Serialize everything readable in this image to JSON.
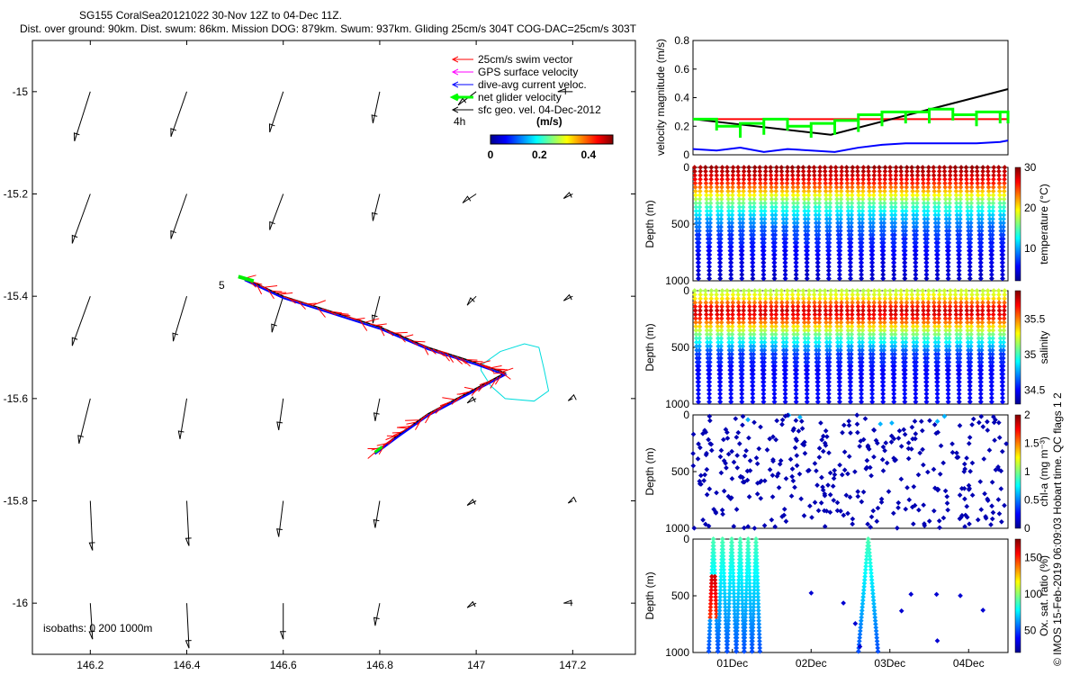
{
  "header": {
    "title_line1": "SG155 CoralSea20121022 30-Nov 12Z to 04-Dec 11Z.",
    "title_line2": "Dist. over ground: 90km. Dist. swum: 86km. Mission DOG: 879km. Swum: 937km. Gliding 25cm/s 304T COG-DAC=25cm/s 303T"
  },
  "credit": "© IMOS 15-Feb-2019 06:09:03 Hobart time. QC flags 1  2",
  "chart_data": [
    {
      "id": "map",
      "type": "scatter",
      "title": "",
      "xlabel": "",
      "ylabel": "",
      "xlim": [
        146.08,
        147.33
      ],
      "ylim": [
        -16.1,
        -14.9
      ],
      "xticks": [
        146.2,
        146.4,
        146.6,
        146.8,
        147,
        147.2
      ],
      "xtick_labels": [
        "146.2",
        "146.4",
        "146.6",
        "146.8",
        "147",
        "147.2"
      ],
      "yticks": [
        -15,
        -15.2,
        -15.4,
        -15.6,
        -15.8,
        -16
      ],
      "ytick_labels": [
        "-15",
        "-15.2",
        "-15.4",
        "-15.6",
        "-15.8",
        "-16"
      ],
      "legend": {
        "position": "top-right",
        "entries": [
          {
            "label": "25cm/s swim vector",
            "color": "#ff0000"
          },
          {
            "label": "GPS surface velocity",
            "color": "#ff00ff"
          },
          {
            "label": "dive-avg current veloc.",
            "color": "#0000ff"
          },
          {
            "label": "net glider velocity",
            "color": "#00ff00"
          },
          {
            "label": "sfc geo. vel. 04-Dec-2012",
            "color": "#000000"
          }
        ]
      },
      "colorbar": {
        "label": "(m/s)",
        "ticks": [
          "0",
          "0.2",
          "0.4"
        ],
        "range": [
          0,
          0.5
        ]
      },
      "annotations": [
        "4h",
        "5",
        "isobaths: 0   200  1000m"
      ],
      "track": [
        [
          146.52,
          -15.365
        ],
        [
          146.6,
          -15.4
        ],
        [
          146.7,
          -15.43
        ],
        [
          146.8,
          -15.46
        ],
        [
          146.9,
          -15.5
        ],
        [
          147.0,
          -15.53
        ],
        [
          147.06,
          -15.55
        ],
        [
          146.98,
          -15.59
        ],
        [
          146.9,
          -15.63
        ],
        [
          146.84,
          -15.67
        ],
        [
          146.79,
          -15.705
        ]
      ],
      "contour": [
        [
          147.01,
          -15.535
        ],
        [
          147.05,
          -15.508
        ],
        [
          147.1,
          -15.493
        ],
        [
          147.13,
          -15.5
        ],
        [
          147.14,
          -15.54
        ],
        [
          147.15,
          -15.585
        ],
        [
          147.12,
          -15.605
        ],
        [
          147.06,
          -15.6
        ],
        [
          147.03,
          -15.575
        ],
        [
          147.01,
          -15.545
        ]
      ],
      "geo_vectors": {
        "x": [
          146.2,
          146.4,
          146.6,
          146.8,
          147.0,
          147.2
        ],
        "y": [
          -15.0,
          -15.2,
          -15.4,
          -15.6,
          -15.8,
          -16.0
        ],
        "u": [
          [
            -0.035,
            -0.035,
            -0.03,
            -0.015,
            -0.04,
            -0.033
          ],
          [
            -0.04,
            -0.035,
            -0.03,
            -0.015,
            -0.03,
            -0.02
          ],
          [
            -0.04,
            -0.03,
            -0.025,
            -0.015,
            -0.02,
            -0.02
          ],
          [
            -0.025,
            -0.015,
            -0.01,
            -0.01,
            -0.02,
            -0.01
          ],
          [
            0.005,
            0.005,
            -0.01,
            -0.01,
            -0.02,
            -0.01
          ],
          [
            0.005,
            0.005,
            0.0,
            -0.01,
            -0.02,
            -0.02
          ]
        ],
        "v": [
          [
            -0.11,
            -0.1,
            -0.09,
            -0.07,
            -0.03,
            0.0
          ],
          [
            -0.11,
            -0.1,
            -0.08,
            -0.06,
            -0.02,
            -0.01
          ],
          [
            -0.11,
            -0.1,
            -0.08,
            -0.06,
            -0.02,
            -0.01
          ],
          [
            -0.1,
            -0.09,
            -0.07,
            -0.05,
            -0.01,
            -0.005
          ],
          [
            -0.11,
            -0.1,
            -0.08,
            -0.06,
            -0.01,
            -0.005
          ],
          [
            -0.08,
            -0.1,
            -0.08,
            -0.05,
            -0.01,
            0.0
          ]
        ]
      }
    },
    {
      "id": "velocity",
      "type": "line",
      "ylabel": "velocity magnitude (m/s)",
      "ylim": [
        0,
        0.8
      ],
      "yticks": [
        0,
        0.2,
        0.4,
        0.6,
        0.8
      ],
      "ytick_labels": [
        "0",
        "0.2",
        "0.4",
        "0.6",
        "0.8"
      ],
      "xlim": [
        0,
        4
      ],
      "series": [
        {
          "color": "#ff0000",
          "x": [
            0,
            4
          ],
          "values": [
            0.25,
            0.25
          ]
        },
        {
          "color": "#000000",
          "x": [
            0,
            1.75,
            4
          ],
          "values": [
            0.25,
            0.14,
            0.46
          ]
        },
        {
          "color": "#0000ff",
          "x": [
            0,
            0.3,
            0.6,
            0.9,
            1.2,
            1.5,
            1.8,
            2.1,
            2.4,
            2.7,
            3.0,
            3.3,
            3.6,
            3.9,
            4.0
          ],
          "values": [
            0.04,
            0.03,
            0.05,
            0.02,
            0.04,
            0.03,
            0.02,
            0.05,
            0.07,
            0.08,
            0.08,
            0.08,
            0.08,
            0.09,
            0.1
          ]
        },
        {
          "color": "#00ff00",
          "x": [
            0,
            0.3,
            0.6,
            0.9,
            1.2,
            1.5,
            1.8,
            2.1,
            2.4,
            2.7,
            3.0,
            3.3,
            3.6,
            3.9,
            4.0
          ],
          "values": [
            0.25,
            0.2,
            0.22,
            0.25,
            0.2,
            0.22,
            0.24,
            0.28,
            0.3,
            0.3,
            0.32,
            0.28,
            0.3,
            0.3,
            0.3
          ]
        }
      ]
    },
    {
      "id": "temperature",
      "type": "scatter",
      "ylabel": "Depth (m)",
      "cbar_label": "temperature (°C)",
      "cbar_ticks": [
        "10",
        "20",
        "30"
      ],
      "cbar_range": [
        2,
        30
      ],
      "yticks": [
        "0",
        "500",
        "1000"
      ],
      "ylim": [
        1000,
        0
      ],
      "dives": 29,
      "profile": [
        [
          0,
          29
        ],
        [
          50,
          28
        ],
        [
          100,
          27
        ],
        [
          150,
          25
        ],
        [
          200,
          22
        ],
        [
          250,
          19
        ],
        [
          300,
          16
        ],
        [
          400,
          12
        ],
        [
          500,
          9
        ],
        [
          600,
          7
        ],
        [
          800,
          5
        ],
        [
          1000,
          4
        ]
      ]
    },
    {
      "id": "salinity",
      "type": "scatter",
      "ylabel": "Depth (m)",
      "cbar_label": "salinity",
      "cbar_ticks": [
        "34.5",
        "35",
        "35.5"
      ],
      "cbar_range": [
        34.3,
        35.9
      ],
      "yticks": [
        "0",
        "500",
        "1000"
      ],
      "ylim": [
        1000,
        0
      ],
      "dives": 29,
      "profile": [
        [
          0,
          35.2
        ],
        [
          60,
          35.3
        ],
        [
          120,
          35.6
        ],
        [
          180,
          35.8
        ],
        [
          260,
          35.6
        ],
        [
          350,
          35.2
        ],
        [
          450,
          34.9
        ],
        [
          550,
          34.6
        ],
        [
          700,
          34.5
        ],
        [
          1000,
          34.5
        ]
      ]
    },
    {
      "id": "chla",
      "type": "scatter",
      "ylabel": "Depth (m)",
      "cbar_label": "chl-a (mg m⁻³)",
      "cbar_ticks": [
        "0",
        "0.5",
        "1",
        "1.5",
        "2"
      ],
      "cbar_range": [
        0,
        2
      ],
      "yticks": [
        "0",
        "500",
        "1000"
      ],
      "ylim": [
        1000,
        0
      ],
      "dives": 29
    },
    {
      "id": "oxygen",
      "type": "scatter",
      "ylabel": "Depth (m)",
      "cbar_label": "Ox. sat. ratio (%)",
      "cbar_ticks": [
        "50",
        "100",
        "150"
      ],
      "cbar_range": [
        20,
        175
      ],
      "yticks": [
        "0",
        "500",
        "1000"
      ],
      "ylim": [
        1000,
        0
      ],
      "xticks": [
        "01Dec",
        "02Dec",
        "03Dec",
        "04Dec"
      ],
      "xtick_pos": [
        0.5,
        1.5,
        2.5,
        3.5
      ],
      "xlim": [
        0,
        4
      ]
    }
  ]
}
